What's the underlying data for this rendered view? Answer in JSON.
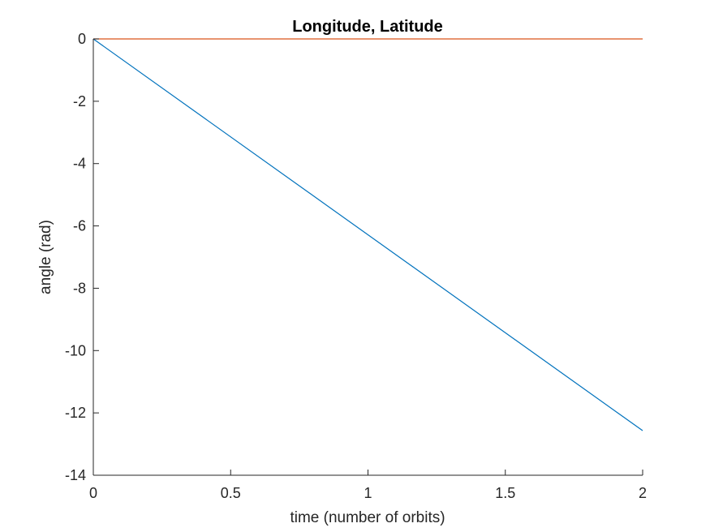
{
  "chart_data": {
    "type": "line",
    "title": "Longitude, Latitude",
    "xlabel": "time (number of orbits)",
    "ylabel": "angle (rad)",
    "xlim": [
      0,
      2
    ],
    "ylim": [
      -14,
      0
    ],
    "xticks": [
      0,
      0.5,
      1,
      1.5,
      2
    ],
    "xtick_labels": [
      "0",
      "0.5",
      "1",
      "1.5",
      "2"
    ],
    "yticks": [
      -14,
      -12,
      -10,
      -8,
      -6,
      -4,
      -2,
      0
    ],
    "ytick_labels": [
      "-14",
      "-12",
      "-10",
      "-8",
      "-6",
      "-4",
      "-2",
      "0"
    ],
    "grid": false,
    "legend": "none",
    "series": [
      {
        "color": "#0072BD",
        "x": [
          0,
          2
        ],
        "y": [
          0,
          -12.57
        ]
      },
      {
        "color": "#D95319",
        "x": [
          0,
          2
        ],
        "y": [
          0,
          0
        ]
      }
    ]
  }
}
